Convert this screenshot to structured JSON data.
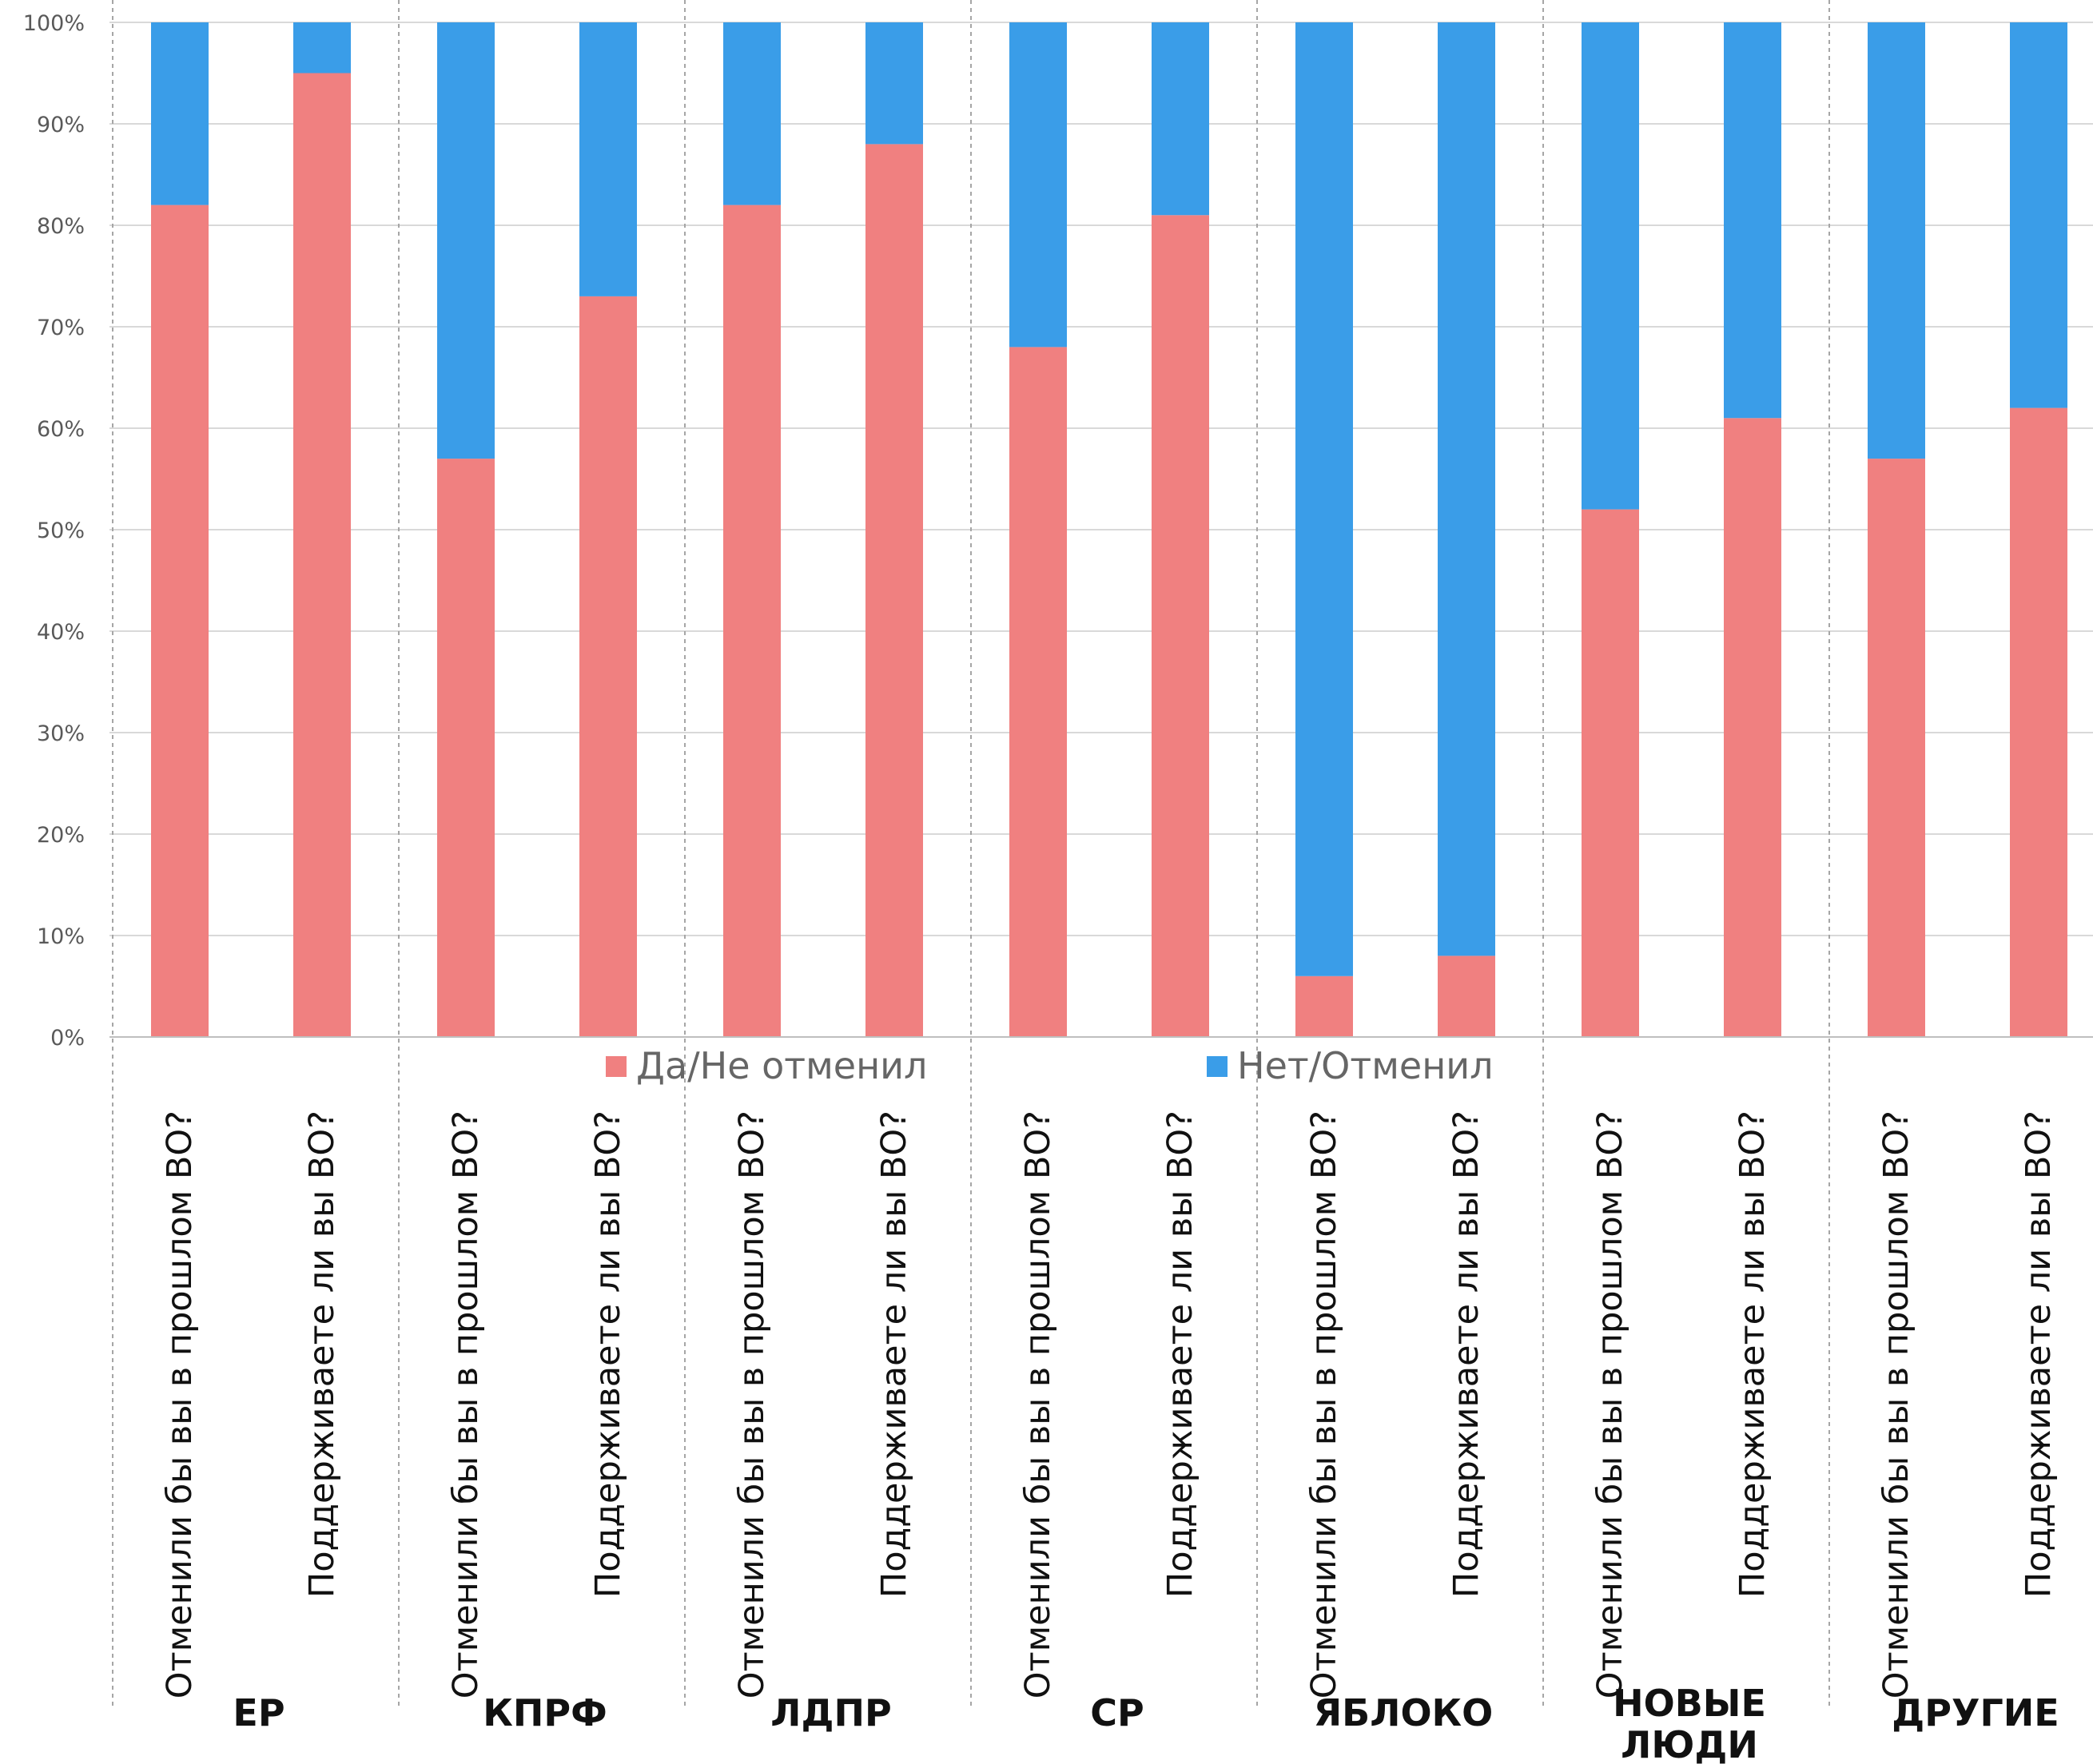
{
  "chart_data": {
    "type": "bar",
    "stacked": true,
    "percent_stacked": true,
    "groups": [
      "ЕР",
      "КПРФ",
      "ЛДПР",
      "СР",
      "ЯБЛОКО",
      "НОВЫЕ ЛЮДИ",
      "ДРУГИЕ"
    ],
    "categories": [
      "Отменили бы вы в прошлом ВО?",
      "Поддерживаете ли вы ВО?"
    ],
    "series": [
      {
        "name": "Да/Не отменил",
        "color": "#f08080",
        "values": [
          [
            82,
            95
          ],
          [
            57,
            73
          ],
          [
            82,
            88
          ],
          [
            68,
            81
          ],
          [
            6,
            8
          ],
          [
            52,
            61
          ],
          [
            57,
            62
          ]
        ]
      },
      {
        "name": "Нет/Отменил",
        "color": "#3a9de8",
        "values": [
          [
            18,
            5
          ],
          [
            43,
            27
          ],
          [
            18,
            12
          ],
          [
            32,
            19
          ],
          [
            94,
            92
          ],
          [
            48,
            39
          ],
          [
            43,
            38
          ]
        ]
      }
    ],
    "yticks": [
      "0%",
      "10%",
      "20%",
      "30%",
      "40%",
      "50%",
      "60%",
      "70%",
      "80%",
      "90%",
      "100%"
    ],
    "ylim": [
      0,
      100
    ],
    "grid": true,
    "legend_position": "bottom"
  }
}
